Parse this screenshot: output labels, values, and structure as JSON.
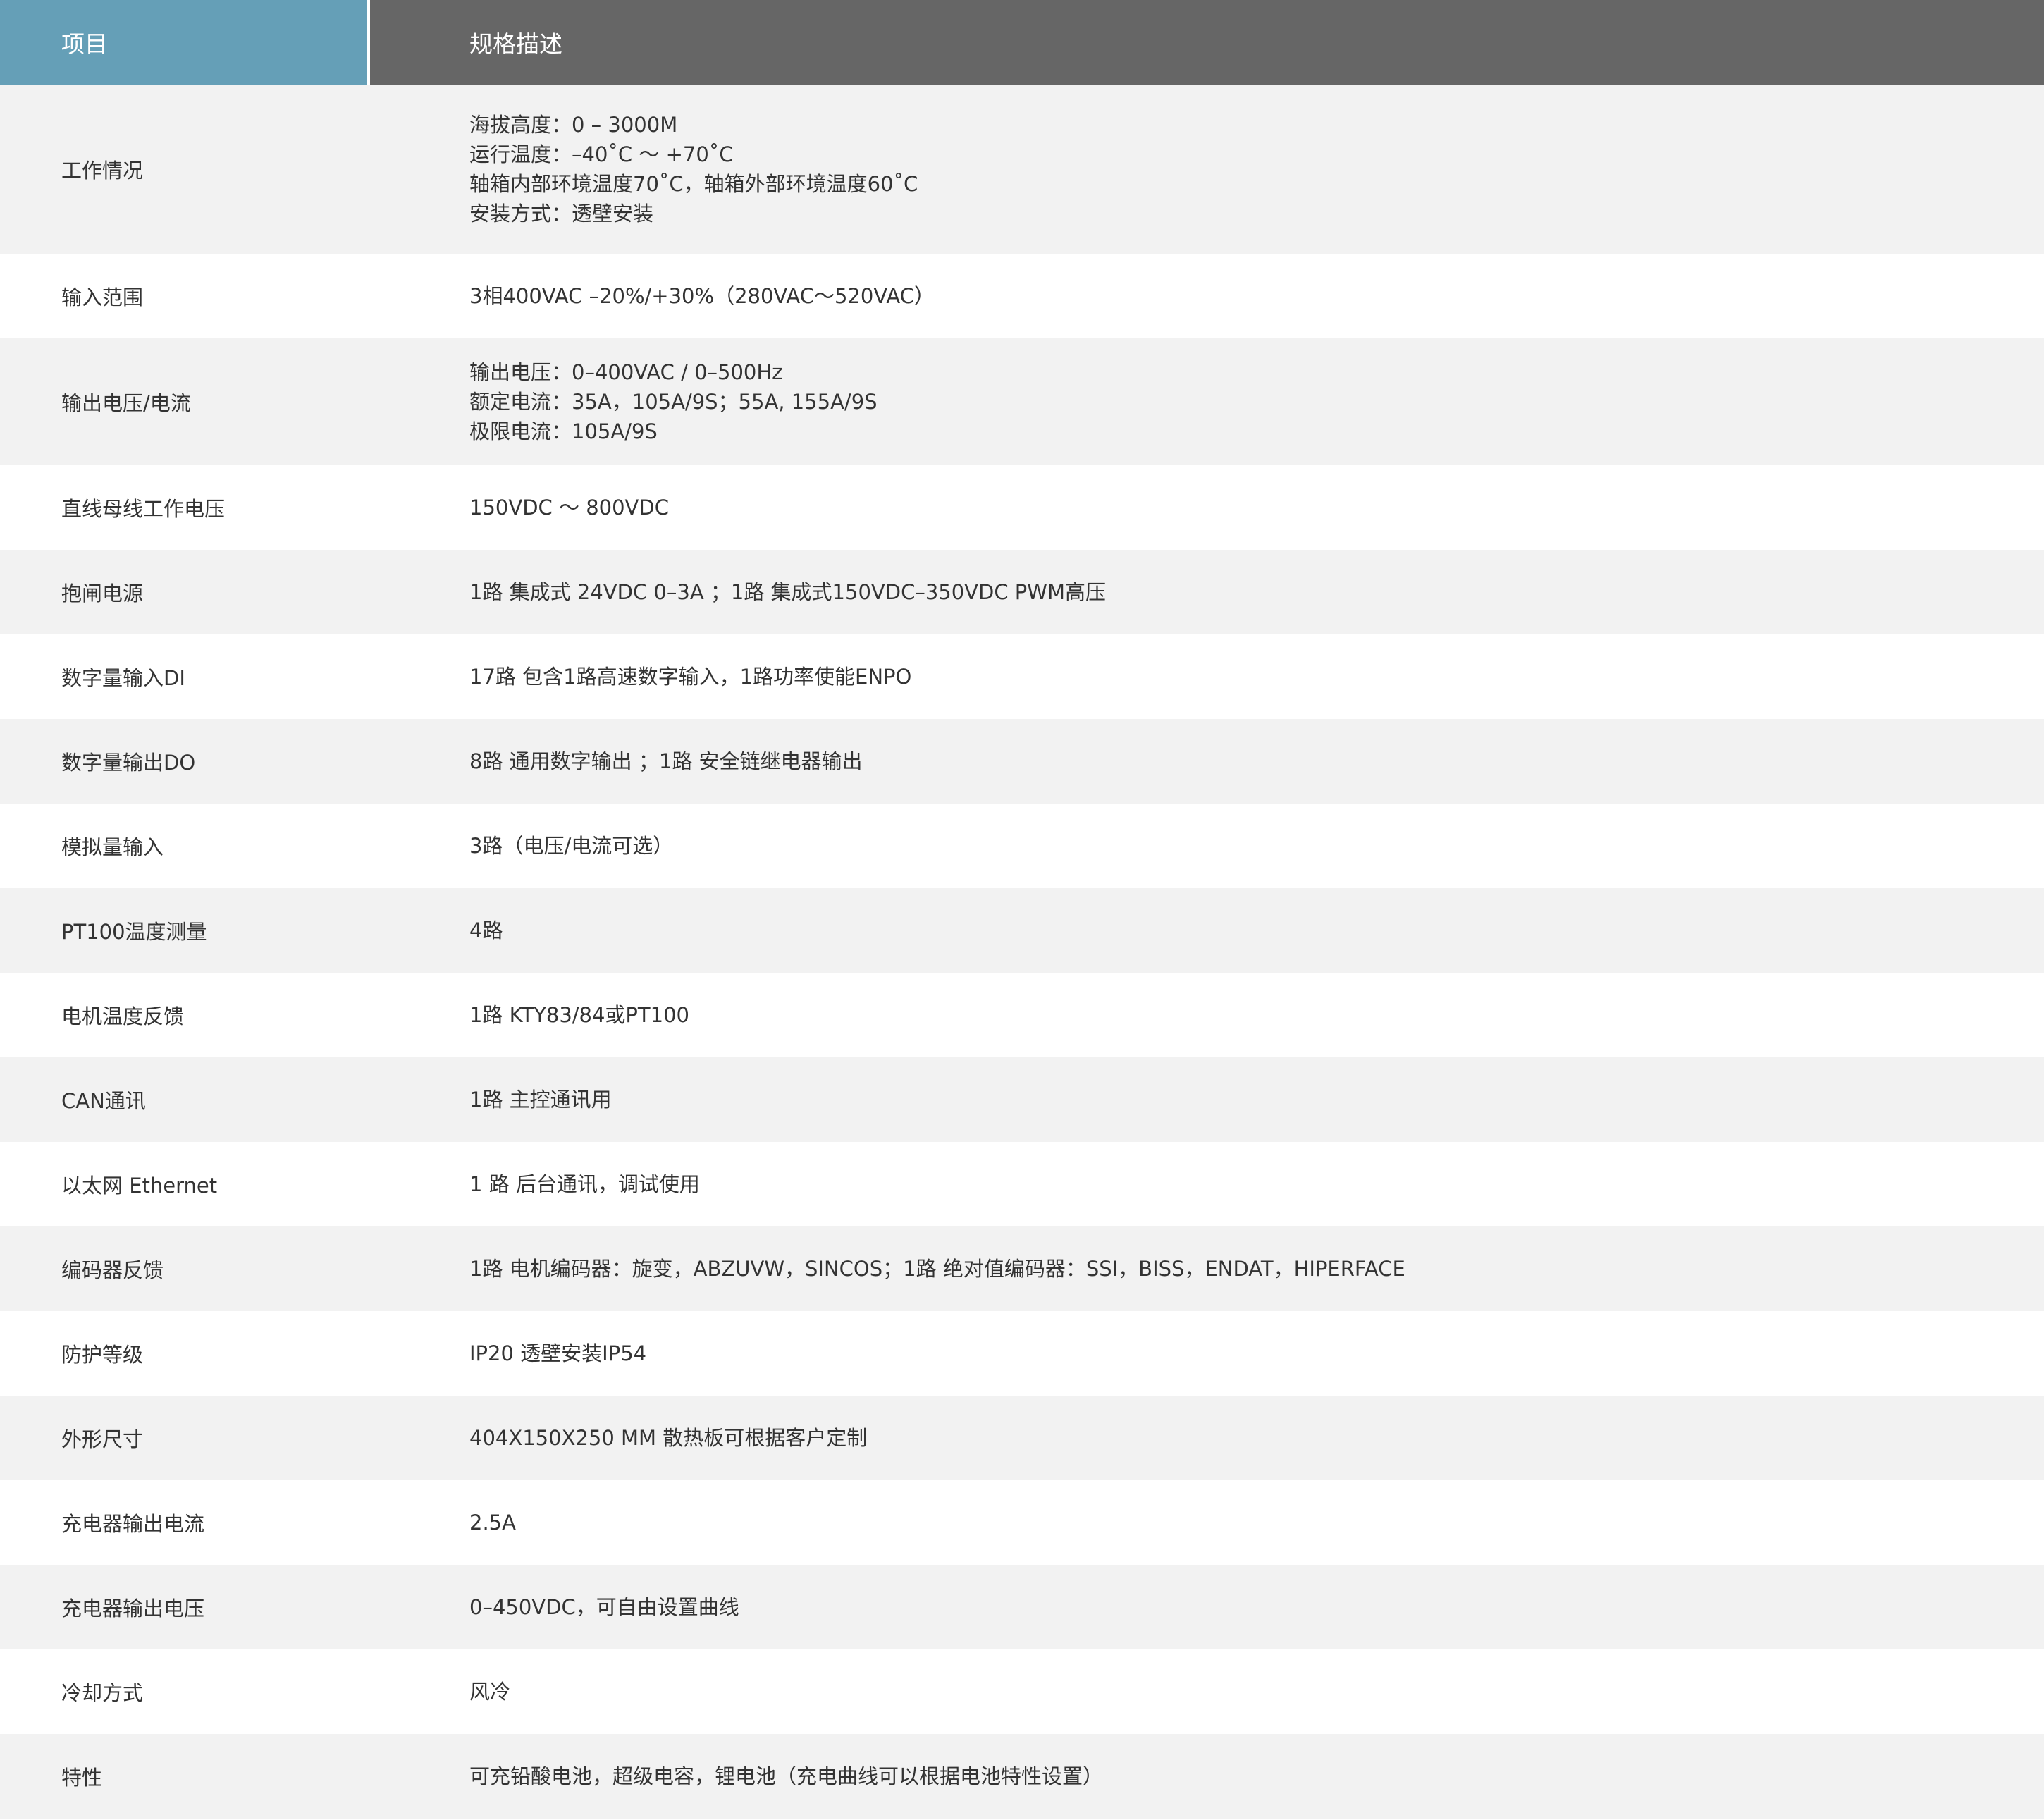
{
  "header": {
    "item": "项目",
    "spec": "规格描述"
  },
  "colors": {
    "header_item_bg": "#659fb7",
    "header_spec_bg": "#666666",
    "row_alt_bg": "#f2f2f2"
  },
  "rows": [
    {
      "label": "工作情况",
      "lines": [
        "海拔高度：0 – 3000M",
        "运行温度：–40˚C ～ +70˚C",
        "轴箱内部环境温度70˚C，轴箱外部环境温度60˚C",
        "安装方式：透壁安装"
      ]
    },
    {
      "label": "输入范围",
      "lines": [
        "3相400VAC  –20%/+30%（280VAC～520VAC）"
      ]
    },
    {
      "label": "输出电压/电流",
      "lines": [
        "输出电压：0–400VAC / 0–500Hz",
        "额定电流：35A，105A/9S；55A, 155A/9S",
        "极限电流：105A/9S"
      ]
    },
    {
      "label": "直线母线工作电压",
      "lines": [
        "150VDC ～ 800VDC"
      ]
    },
    {
      "label": "抱闸电源",
      "lines": [
        "1路 集成式 24VDC 0–3A ；1路 集成式150VDC–350VDC PWM高压"
      ]
    },
    {
      "label": "数字量输入DI",
      "lines": [
        "17路 包含1路高速数字输入，1路功率使能ENPO"
      ]
    },
    {
      "label": "数字量输出DO",
      "lines": [
        "8路 通用数字输出 ；1路 安全链继电器输出"
      ]
    },
    {
      "label": "模拟量输入",
      "lines": [
        "3路（电压/电流可选）"
      ]
    },
    {
      "label": "PT100温度测量",
      "lines": [
        "4路"
      ]
    },
    {
      "label": "电机温度反馈",
      "lines": [
        "1路 KTY83/84或PT100"
      ]
    },
    {
      "label": "CAN通讯",
      "lines": [
        "1路 主控通讯用"
      ]
    },
    {
      "label": "以太网 Ethernet",
      "lines": [
        "1 路 后台通讯，调试使用"
      ]
    },
    {
      "label": "编码器反馈",
      "lines": [
        "1路 电机编码器：旋变，ABZUVW，SINCOS；1路 绝对值编码器：SSI，BISS，ENDAT，HIPERFACE"
      ]
    },
    {
      "label": "防护等级",
      "lines": [
        "IP20 透壁安装IP54"
      ]
    },
    {
      "label": "外形尺寸",
      "lines": [
        "404X150X250 MM  散热板可根据客户定制"
      ]
    },
    {
      "label": "充电器输出电流",
      "lines": [
        "2.5A"
      ]
    },
    {
      "label": "充电器输出电压",
      "lines": [
        "0–450VDC，可自由设置曲线"
      ]
    },
    {
      "label": "冷却方式",
      "lines": [
        "风冷"
      ]
    },
    {
      "label": "特性",
      "lines": [
        "可充铅酸电池，超级电容，锂电池（充电曲线可以根据电池特性设置）"
      ]
    }
  ]
}
